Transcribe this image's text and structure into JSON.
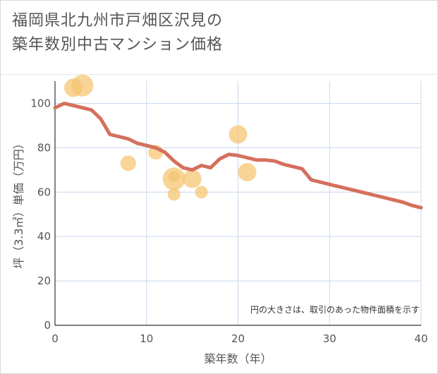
{
  "title_lines": [
    "福岡県北九州市戸畑区沢見の",
    "築年数別中古マンション価格"
  ],
  "chart_data": {
    "type": "scatter",
    "xlabel": "築年数（年）",
    "ylabel": "坪（3.3㎡）単価（万円）",
    "xlim": [
      0,
      40
    ],
    "ylim": [
      0,
      110
    ],
    "x_ticks": [
      0,
      10,
      20,
      30,
      40
    ],
    "y_ticks": [
      0,
      20,
      40,
      60,
      80,
      100
    ],
    "grid": true,
    "note": "円の大きさは、取引のあった物件面積を示す",
    "bubbles": [
      {
        "x": 2,
        "y": 107,
        "size": 0.7
      },
      {
        "x": 3,
        "y": 108,
        "size": 0.95
      },
      {
        "x": 8,
        "y": 73,
        "size": 0.5
      },
      {
        "x": 11,
        "y": 78,
        "size": 0.45
      },
      {
        "x": 13,
        "y": 66,
        "size": 1.0
      },
      {
        "x": 13,
        "y": 67,
        "size": 0.2
      },
      {
        "x": 13,
        "y": 59,
        "size": 0.3
      },
      {
        "x": 15,
        "y": 66,
        "size": 0.7
      },
      {
        "x": 16,
        "y": 60,
        "size": 0.3
      },
      {
        "x": 20,
        "y": 86,
        "size": 0.7
      },
      {
        "x": 21,
        "y": 69,
        "size": 0.7
      }
    ],
    "trend_line": {
      "x": [
        0,
        1,
        2,
        3,
        4,
        5,
        6,
        7,
        8,
        9,
        10,
        11,
        12,
        13,
        14,
        15,
        16,
        17,
        18,
        19,
        20,
        21,
        22,
        23,
        24,
        25,
        26,
        27,
        28,
        29,
        30,
        31,
        32,
        33,
        34,
        35,
        36,
        37,
        38,
        39,
        40
      ],
      "y": [
        98,
        100,
        99,
        98,
        97,
        93,
        86,
        85,
        84,
        82,
        81,
        80,
        78,
        74,
        71,
        70,
        72,
        71,
        75,
        77,
        76.5,
        75.5,
        74.5,
        74.5,
        74,
        72.5,
        71.5,
        70.5,
        65.5,
        64.5,
        63.5,
        62.5,
        61.5,
        60.5,
        59.5,
        58.5,
        57.5,
        56.5,
        55.5,
        54,
        53
      ]
    },
    "colors": {
      "bubble": "#f5c36e",
      "line": "#d4705d",
      "grid": "#c8d8ec",
      "axis": "#333333"
    }
  }
}
